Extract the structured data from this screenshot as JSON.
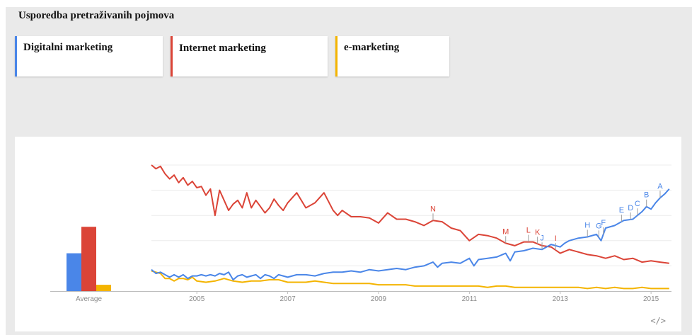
{
  "header": {
    "title": "Usporedba pretraživanih pojmova"
  },
  "terms": [
    {
      "label": "Digitalni marketing",
      "color": "#4a86e8"
    },
    {
      "label": "Internet marketing",
      "color": "#db4437"
    },
    {
      "label": "e-marketing",
      "color": "#f4b400"
    }
  ],
  "embed_icon": {
    "glyph": "</>",
    "icon": "embed-code-icon"
  },
  "chart_data": [
    {
      "type": "bar",
      "categories": [
        "Average"
      ],
      "series": [
        {
          "name": "Digitalni marketing",
          "values": [
            30
          ]
        },
        {
          "name": "Internet marketing",
          "values": [
            51
          ]
        },
        {
          "name": "e-marketing",
          "values": [
            5
          ]
        }
      ],
      "ylim": [
        0,
        100
      ]
    },
    {
      "type": "line",
      "x_ticks": [
        "2005",
        "2007",
        "2009",
        "2011",
        "2013",
        "2015"
      ],
      "xlim": [
        2004.0,
        2015.45
      ],
      "ylim": [
        0,
        100
      ],
      "grid": true,
      "series": [
        {
          "name": "Digitalni marketing",
          "color": "#4a86e8",
          "points": [
            [
              2004.0,
              17
            ],
            [
              2004.1,
              14
            ],
            [
              2004.2,
              15
            ],
            [
              2004.3,
              13
            ],
            [
              2004.4,
              11
            ],
            [
              2004.5,
              13
            ],
            [
              2004.6,
              11
            ],
            [
              2004.7,
              13
            ],
            [
              2004.8,
              10
            ],
            [
              2004.9,
              12
            ],
            [
              2005.0,
              12
            ],
            [
              2005.1,
              13
            ],
            [
              2005.2,
              12
            ],
            [
              2005.3,
              13
            ],
            [
              2005.4,
              12
            ],
            [
              2005.5,
              14
            ],
            [
              2005.6,
              13
            ],
            [
              2005.7,
              15
            ],
            [
              2005.8,
              9
            ],
            [
              2005.9,
              12
            ],
            [
              2006.0,
              13
            ],
            [
              2006.1,
              11
            ],
            [
              2006.2,
              12
            ],
            [
              2006.3,
              13
            ],
            [
              2006.4,
              10
            ],
            [
              2006.5,
              13
            ],
            [
              2006.6,
              12
            ],
            [
              2006.7,
              10
            ],
            [
              2006.8,
              13
            ],
            [
              2006.9,
              12
            ],
            [
              2007.0,
              11
            ],
            [
              2007.2,
              13
            ],
            [
              2007.4,
              13
            ],
            [
              2007.6,
              12
            ],
            [
              2007.8,
              14
            ],
            [
              2008.0,
              15
            ],
            [
              2008.2,
              15
            ],
            [
              2008.4,
              16
            ],
            [
              2008.6,
              15
            ],
            [
              2008.8,
              17
            ],
            [
              2009.0,
              16
            ],
            [
              2009.2,
              17
            ],
            [
              2009.4,
              18
            ],
            [
              2009.6,
              17
            ],
            [
              2009.8,
              19
            ],
            [
              2010.0,
              20
            ],
            [
              2010.2,
              23
            ],
            [
              2010.3,
              19
            ],
            [
              2010.4,
              22
            ],
            [
              2010.6,
              23
            ],
            [
              2010.8,
              22
            ],
            [
              2011.0,
              26
            ],
            [
              2011.1,
              20
            ],
            [
              2011.2,
              25
            ],
            [
              2011.4,
              26
            ],
            [
              2011.6,
              27
            ],
            [
              2011.8,
              30
            ],
            [
              2011.9,
              24
            ],
            [
              2012.0,
              31
            ],
            [
              2012.2,
              32
            ],
            [
              2012.4,
              34
            ],
            [
              2012.6,
              33
            ],
            [
              2012.8,
              37
            ],
            [
              2013.0,
              35
            ],
            [
              2013.1,
              38
            ],
            [
              2013.2,
              40
            ],
            [
              2013.4,
              42
            ],
            [
              2013.6,
              43
            ],
            [
              2013.8,
              45
            ],
            [
              2013.9,
              40
            ],
            [
              2014.0,
              50
            ],
            [
              2014.2,
              52
            ],
            [
              2014.4,
              56
            ],
            [
              2014.6,
              57
            ],
            [
              2014.8,
              63
            ],
            [
              2014.9,
              67
            ],
            [
              2015.0,
              65
            ],
            [
              2015.1,
              70
            ],
            [
              2015.2,
              74
            ],
            [
              2015.3,
              77
            ],
            [
              2015.4,
              81
            ]
          ]
        },
        {
          "name": "Internet marketing",
          "color": "#db4437",
          "points": [
            [
              2004.0,
              100
            ],
            [
              2004.1,
              97
            ],
            [
              2004.2,
              99
            ],
            [
              2004.3,
              93
            ],
            [
              2004.4,
              89
            ],
            [
              2004.5,
              92
            ],
            [
              2004.6,
              86
            ],
            [
              2004.7,
              90
            ],
            [
              2004.8,
              84
            ],
            [
              2004.9,
              87
            ],
            [
              2005.0,
              82
            ],
            [
              2005.1,
              83
            ],
            [
              2005.2,
              76
            ],
            [
              2005.3,
              81
            ],
            [
              2005.4,
              60
            ],
            [
              2005.5,
              80
            ],
            [
              2005.6,
              72
            ],
            [
              2005.7,
              64
            ],
            [
              2005.8,
              69
            ],
            [
              2005.9,
              72
            ],
            [
              2006.0,
              66
            ],
            [
              2006.1,
              78
            ],
            [
              2006.2,
              66
            ],
            [
              2006.3,
              72
            ],
            [
              2006.4,
              67
            ],
            [
              2006.5,
              62
            ],
            [
              2006.6,
              66
            ],
            [
              2006.7,
              73
            ],
            [
              2006.8,
              68
            ],
            [
              2006.9,
              64
            ],
            [
              2007.0,
              70
            ],
            [
              2007.2,
              78
            ],
            [
              2007.4,
              66
            ],
            [
              2007.6,
              70
            ],
            [
              2007.8,
              78
            ],
            [
              2008.0,
              64
            ],
            [
              2008.1,
              60
            ],
            [
              2008.2,
              64
            ],
            [
              2008.4,
              59
            ],
            [
              2008.6,
              59
            ],
            [
              2008.8,
              58
            ],
            [
              2009.0,
              54
            ],
            [
              2009.2,
              62
            ],
            [
              2009.4,
              57
            ],
            [
              2009.6,
              57
            ],
            [
              2009.8,
              55
            ],
            [
              2010.0,
              52
            ],
            [
              2010.2,
              56
            ],
            [
              2010.4,
              55
            ],
            [
              2010.6,
              50
            ],
            [
              2010.8,
              48
            ],
            [
              2011.0,
              40
            ],
            [
              2011.2,
              45
            ],
            [
              2011.4,
              44
            ],
            [
              2011.6,
              42
            ],
            [
              2011.8,
              38
            ],
            [
              2012.0,
              36
            ],
            [
              2012.2,
              39
            ],
            [
              2012.4,
              39
            ],
            [
              2012.6,
              36
            ],
            [
              2012.8,
              35
            ],
            [
              2013.0,
              30
            ],
            [
              2013.2,
              33
            ],
            [
              2013.4,
              31
            ],
            [
              2013.6,
              29
            ],
            [
              2013.8,
              28
            ],
            [
              2014.0,
              26
            ],
            [
              2014.2,
              28
            ],
            [
              2014.4,
              25
            ],
            [
              2014.6,
              26
            ],
            [
              2014.8,
              23
            ],
            [
              2015.0,
              24
            ],
            [
              2015.2,
              23
            ],
            [
              2015.4,
              22
            ]
          ]
        },
        {
          "name": "e-marketing",
          "color": "#f4b400",
          "points": [
            [
              2004.0,
              16
            ],
            [
              2004.1,
              15
            ],
            [
              2004.2,
              14
            ],
            [
              2004.3,
              10
            ],
            [
              2004.4,
              10
            ],
            [
              2004.5,
              8
            ],
            [
              2004.6,
              10
            ],
            [
              2004.7,
              10
            ],
            [
              2004.8,
              9
            ],
            [
              2004.9,
              11
            ],
            [
              2005.0,
              8
            ],
            [
              2005.2,
              7
            ],
            [
              2005.4,
              8
            ],
            [
              2005.6,
              10
            ],
            [
              2005.8,
              8
            ],
            [
              2006.0,
              7
            ],
            [
              2006.2,
              8
            ],
            [
              2006.4,
              8
            ],
            [
              2006.6,
              9
            ],
            [
              2006.8,
              9
            ],
            [
              2007.0,
              7
            ],
            [
              2007.2,
              7
            ],
            [
              2007.4,
              7
            ],
            [
              2007.6,
              8
            ],
            [
              2007.8,
              7
            ],
            [
              2008.0,
              6
            ],
            [
              2008.2,
              6
            ],
            [
              2008.4,
              6
            ],
            [
              2008.6,
              6
            ],
            [
              2008.8,
              6
            ],
            [
              2009.0,
              5
            ],
            [
              2009.2,
              5
            ],
            [
              2009.4,
              5
            ],
            [
              2009.6,
              5
            ],
            [
              2009.8,
              4
            ],
            [
              2010.0,
              4
            ],
            [
              2010.2,
              4
            ],
            [
              2010.4,
              4
            ],
            [
              2010.6,
              4
            ],
            [
              2010.8,
              4
            ],
            [
              2011.0,
              4
            ],
            [
              2011.2,
              4
            ],
            [
              2011.4,
              3
            ],
            [
              2011.6,
              4
            ],
            [
              2011.8,
              4
            ],
            [
              2012.0,
              3
            ],
            [
              2012.2,
              3
            ],
            [
              2012.4,
              3
            ],
            [
              2012.6,
              3
            ],
            [
              2012.8,
              3
            ],
            [
              2013.0,
              3
            ],
            [
              2013.2,
              3
            ],
            [
              2013.4,
              3
            ],
            [
              2013.6,
              2
            ],
            [
              2013.8,
              3
            ],
            [
              2014.0,
              2
            ],
            [
              2014.2,
              3
            ],
            [
              2014.4,
              2
            ],
            [
              2014.6,
              2
            ],
            [
              2014.8,
              3
            ],
            [
              2015.0,
              2
            ],
            [
              2015.2,
              2
            ],
            [
              2015.4,
              2
            ]
          ]
        }
      ],
      "annotations": [
        {
          "label": "N",
          "x": 2010.2,
          "series": "Internet marketing"
        },
        {
          "label": "M",
          "x": 2011.8,
          "series": "Internet marketing"
        },
        {
          "label": "L",
          "x": 2012.3,
          "series": "Internet marketing"
        },
        {
          "label": "K",
          "x": 2012.5,
          "series": "Internet marketing"
        },
        {
          "label": "J",
          "x": 2012.6,
          "series": "Digitalni marketing"
        },
        {
          "label": "I",
          "x": 2012.9,
          "series": "Internet marketing"
        },
        {
          "label": "H",
          "x": 2013.6,
          "series": "Digitalni marketing"
        },
        {
          "label": "G",
          "x": 2013.85,
          "series": "Digitalni marketing"
        },
        {
          "label": "F",
          "x": 2013.95,
          "series": "Digitalni marketing"
        },
        {
          "label": "E",
          "x": 2014.35,
          "series": "Digitalni marketing"
        },
        {
          "label": "D",
          "x": 2014.55,
          "series": "Digitalni marketing"
        },
        {
          "label": "C",
          "x": 2014.7,
          "series": "Digitalni marketing"
        },
        {
          "label": "B",
          "x": 2014.9,
          "series": "Digitalni marketing"
        },
        {
          "label": "A",
          "x": 2015.2,
          "series": "Digitalni marketing"
        }
      ]
    }
  ]
}
